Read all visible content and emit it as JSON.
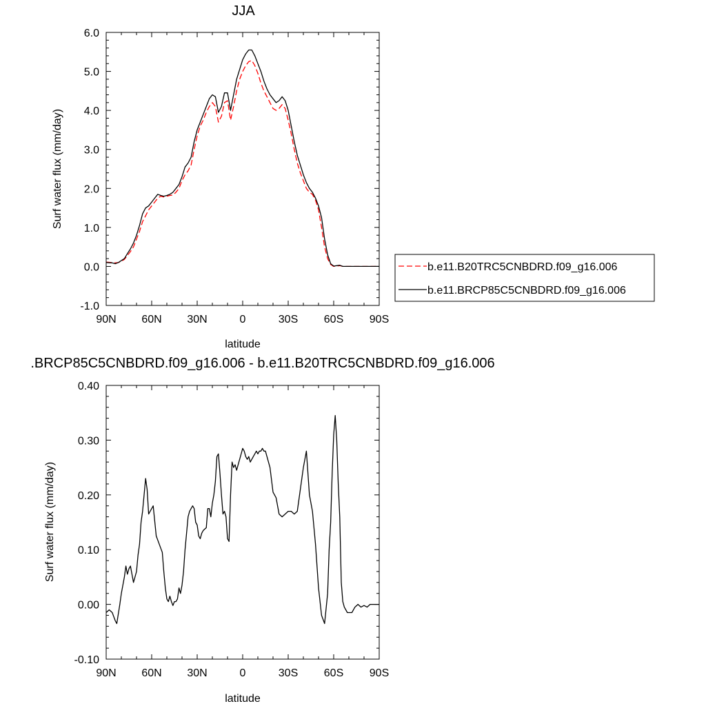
{
  "chart_data": [
    {
      "type": "line",
      "title": "JJA",
      "xlabel": "latitude",
      "ylabel": "Surf water flux (mm/day)",
      "xlim": [
        90,
        -90
      ],
      "ylim": [
        -1.0,
        6.0
      ],
      "x_tick_values": [
        90,
        60,
        30,
        0,
        -30,
        -60,
        -90
      ],
      "x_tick_labels": [
        "90N",
        "60N",
        "30N",
        "0",
        "30S",
        "60S",
        "90S"
      ],
      "y_tick_values": [
        -1.0,
        0.0,
        1.0,
        2.0,
        3.0,
        4.0,
        5.0,
        6.0
      ],
      "y_tick_labels": [
        "-1.0",
        "0.0",
        "1.0",
        "2.0",
        "3.0",
        "4.0",
        "5.0",
        "6.0"
      ],
      "grid": false,
      "legend_position": "right",
      "series": [
        {
          "name": "b.e11.B20TRC5CNBDRD.f09_g16.006",
          "color": "#ff0000",
          "dash": "dashed",
          "x": [
            90,
            86,
            84,
            82,
            80,
            78,
            76,
            74,
            72,
            70,
            68,
            66,
            64,
            62,
            60,
            58,
            56,
            54,
            52,
            50,
            48,
            46,
            44,
            42,
            40,
            38,
            36,
            34,
            32,
            30,
            28,
            26,
            24,
            22,
            20,
            18,
            16,
            14,
            12,
            10,
            8,
            6,
            4,
            2,
            0,
            -2,
            -4,
            -6,
            -8,
            -10,
            -12,
            -14,
            -16,
            -18,
            -20,
            -22,
            -24,
            -26,
            -28,
            -30,
            -32,
            -34,
            -36,
            -38,
            -40,
            -42,
            -44,
            -46,
            -48,
            -50,
            -52,
            -54,
            -56,
            -58,
            -60,
            -62,
            -64,
            -66,
            -68,
            -70,
            -72,
            -74,
            -76,
            -78,
            -80,
            -82,
            -84,
            -86,
            -88,
            -90
          ],
          "y": [
            0.11,
            0.1,
            0.09,
            0.1,
            0.13,
            0.18,
            0.28,
            0.38,
            0.5,
            0.7,
            0.9,
            1.15,
            1.3,
            1.45,
            1.55,
            1.65,
            1.75,
            1.8,
            1.78,
            1.8,
            1.82,
            1.83,
            1.9,
            2.0,
            2.2,
            2.35,
            2.45,
            2.6,
            3.0,
            3.35,
            3.6,
            3.75,
            3.95,
            4.1,
            4.2,
            4.1,
            3.7,
            3.85,
            4.2,
            4.25,
            3.75,
            4.1,
            4.5,
            4.8,
            5.0,
            5.15,
            5.25,
            5.28,
            5.15,
            4.95,
            4.7,
            4.5,
            4.35,
            4.2,
            4.05,
            4.0,
            4.05,
            4.15,
            4.05,
            3.75,
            3.4,
            3.0,
            2.65,
            2.4,
            2.2,
            2.0,
            1.9,
            1.85,
            1.7,
            1.45,
            1.0,
            0.5,
            0.2,
            0.05,
            0.0,
            0.01,
            0.02,
            0.0,
            0.0,
            0.0,
            0.0,
            0.0,
            0.0,
            0.0,
            0.0,
            0.0,
            0.0,
            0.0,
            0.0,
            0.0
          ]
        },
        {
          "name": "b.e11.BRCP85C5CNBDRD.f09_g16.006",
          "color": "#000000",
          "dash": "solid",
          "x": [
            90,
            86,
            84,
            82,
            80,
            78,
            76,
            74,
            72,
            70,
            68,
            66,
            64,
            62,
            60,
            58,
            56,
            54,
            52,
            50,
            48,
            46,
            44,
            42,
            40,
            38,
            36,
            34,
            32,
            30,
            28,
            26,
            24,
            22,
            20,
            18,
            16,
            14,
            12,
            10,
            8,
            6,
            4,
            2,
            0,
            -2,
            -4,
            -6,
            -8,
            -10,
            -12,
            -14,
            -16,
            -18,
            -20,
            -22,
            -24,
            -26,
            -28,
            -30,
            -32,
            -34,
            -36,
            -38,
            -40,
            -42,
            -44,
            -46,
            -48,
            -50,
            -52,
            -54,
            -56,
            -58,
            -60,
            -62,
            -64,
            -66,
            -68,
            -70,
            -72,
            -74,
            -76,
            -78,
            -80,
            -82,
            -84,
            -86,
            -88,
            -90
          ],
          "y": [
            0.1,
            0.09,
            0.07,
            0.1,
            0.15,
            0.2,
            0.33,
            0.45,
            0.6,
            0.8,
            1.05,
            1.35,
            1.5,
            1.55,
            1.65,
            1.75,
            1.85,
            1.82,
            1.8,
            1.82,
            1.85,
            1.9,
            2.0,
            2.1,
            2.3,
            2.55,
            2.65,
            2.8,
            3.2,
            3.5,
            3.7,
            3.9,
            4.1,
            4.3,
            4.4,
            4.35,
            3.95,
            4.1,
            4.45,
            4.45,
            4.0,
            4.4,
            4.8,
            5.05,
            5.3,
            5.45,
            5.55,
            5.55,
            5.4,
            5.2,
            5.0,
            4.75,
            4.55,
            4.4,
            4.3,
            4.2,
            4.25,
            4.35,
            4.25,
            4.0,
            3.6,
            3.2,
            2.85,
            2.6,
            2.35,
            2.15,
            2.0,
            1.9,
            1.75,
            1.55,
            1.25,
            0.7,
            0.3,
            0.07,
            0.01,
            0.02,
            0.03,
            0.0,
            0.0,
            0.0,
            0.0,
            0.0,
            0.0,
            0.0,
            0.0,
            0.0,
            0.0,
            0.0,
            0.0,
            0.0
          ]
        }
      ]
    },
    {
      "type": "line",
      "title": ".BRCP85C5CNBDRD.f09_g16.006 - b.e11.B20TRC5CNBDRD.f09_g16.006",
      "xlabel": "latitude",
      "ylabel": "Surf water flux (mm/day)",
      "xlim": [
        90,
        -90
      ],
      "ylim": [
        -0.1,
        0.4
      ],
      "x_tick_values": [
        90,
        60,
        30,
        0,
        -30,
        -60,
        -90
      ],
      "x_tick_labels": [
        "90N",
        "60N",
        "30N",
        "0",
        "30S",
        "60S",
        "90S"
      ],
      "y_tick_values": [
        -0.1,
        0.0,
        0.1,
        0.2,
        0.3,
        0.4
      ],
      "y_tick_labels": [
        "-0.10",
        "0.00",
        "0.10",
        "0.20",
        "0.30",
        "0.40"
      ],
      "grid": false,
      "series": [
        {
          "color": "#000000",
          "dash": "solid",
          "x": [
            90,
            88,
            86,
            84,
            83,
            81,
            80,
            78,
            77,
            76,
            75,
            74,
            73,
            72,
            70,
            69,
            68,
            67,
            66,
            65,
            64,
            63,
            62,
            61,
            59,
            57,
            55,
            53,
            52,
            51,
            50,
            49,
            48,
            47,
            46,
            45,
            44,
            43,
            42,
            41,
            40,
            39,
            38,
            36,
            35,
            34,
            33,
            32,
            31,
            30,
            29,
            28,
            27,
            26,
            24,
            23,
            22,
            21,
            20,
            19,
            18,
            17,
            16,
            15,
            14,
            13,
            12,
            11,
            10,
            9,
            8,
            7,
            6,
            5,
            4,
            3,
            2,
            1,
            0,
            -1,
            -2,
            -3,
            -4,
            -5,
            -6,
            -7,
            -8,
            -9,
            -10,
            -11,
            -12,
            -13,
            -14,
            -15,
            -16,
            -17,
            -18,
            -20,
            -22,
            -24,
            -26,
            -28,
            -30,
            -32,
            -34,
            -36,
            -38,
            -40,
            -42,
            -44,
            -46,
            -48,
            -50,
            -52,
            -54,
            -56,
            -57,
            -58,
            -59,
            -60,
            -61,
            -62,
            -63,
            -64,
            -65,
            -66,
            -67,
            -68,
            -69,
            -70,
            -72,
            -74,
            -76,
            -78,
            -80,
            -82,
            -84,
            -86,
            -88,
            -90
          ],
          "y": [
            -0.015,
            -0.01,
            -0.015,
            -0.03,
            -0.035,
            0.0,
            0.02,
            0.05,
            0.07,
            0.055,
            0.065,
            0.07,
            0.055,
            0.04,
            0.06,
            0.09,
            0.11,
            0.15,
            0.17,
            0.2,
            0.23,
            0.21,
            0.165,
            0.17,
            0.18,
            0.125,
            0.11,
            0.095,
            0.06,
            0.03,
            0.01,
            0.005,
            0.015,
            0.005,
            -0.002,
            0.005,
            0.005,
            0.01,
            0.03,
            0.02,
            0.035,
            0.06,
            0.1,
            0.16,
            0.17,
            0.175,
            0.18,
            0.175,
            0.15,
            0.145,
            0.125,
            0.12,
            0.13,
            0.135,
            0.14,
            0.175,
            0.175,
            0.16,
            0.185,
            0.2,
            0.225,
            0.27,
            0.275,
            0.24,
            0.2,
            0.165,
            0.17,
            0.16,
            0.12,
            0.115,
            0.2,
            0.26,
            0.25,
            0.255,
            0.245,
            0.255,
            0.265,
            0.275,
            0.285,
            0.28,
            0.27,
            0.265,
            0.27,
            0.26,
            0.265,
            0.27,
            0.275,
            0.28,
            0.275,
            0.28,
            0.28,
            0.285,
            0.28,
            0.28,
            0.27,
            0.26,
            0.25,
            0.205,
            0.195,
            0.165,
            0.16,
            0.165,
            0.17,
            0.17,
            0.165,
            0.17,
            0.21,
            0.25,
            0.28,
            0.2,
            0.17,
            0.11,
            0.03,
            -0.02,
            -0.035,
            0.02,
            0.1,
            0.15,
            0.24,
            0.31,
            0.345,
            0.3,
            0.22,
            0.16,
            0.04,
            0.005,
            -0.005,
            -0.01,
            -0.015,
            -0.015,
            -0.015,
            -0.005,
            0.0,
            -0.005,
            -0.002,
            -0.005,
            0.0,
            0.0,
            0.0,
            0.0
          ]
        }
      ]
    }
  ]
}
